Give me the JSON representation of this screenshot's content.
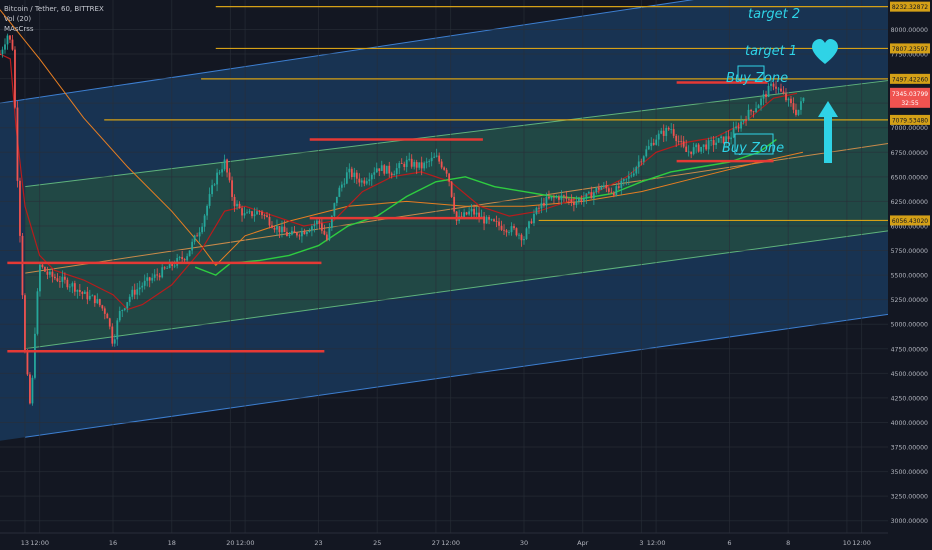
{
  "legend": {
    "symbol": "Bitcoin / Tether, 60, BITTREX",
    "volume": "Vol (20)",
    "indicator": "MAsCrss"
  },
  "colors": {
    "background": "#131722",
    "channel_fill": "#1e4a7a",
    "inner_fill": "#2a5a3a",
    "level_line": "#d4a017",
    "resistance": "#e53935",
    "annotation": "#2fd3e6",
    "ma_green": "#2ecc40",
    "ma_red": "#b71c1c",
    "ma_orange": "#e67e22",
    "up_candle": "#26a69a",
    "down_candle": "#ef5350"
  },
  "annotations": {
    "target2": "target 2",
    "target1": "target 1",
    "buy_zone_top": "Buy Zone",
    "buy_zone_mid": "Buy Zone"
  },
  "icons": [
    "heart-icon",
    "up-arrow-icon"
  ],
  "chart_data": {
    "type": "candlestick",
    "title": "Bitcoin / Tether, 60, BITTREX",
    "ylim": [
      2875,
      8300
    ],
    "y_ticks": [
      3000,
      3250,
      3500,
      3750,
      4000,
      4250,
      4500,
      4750,
      5000,
      5250,
      5500,
      5750,
      6000,
      6250,
      6500,
      6750,
      7000,
      7250,
      7500,
      7750,
      8000
    ],
    "y_tick_labels": [
      "3000.00000",
      "3250.00000",
      "3500.00000",
      "3750.00000",
      "4000.00000",
      "4250.00000",
      "4500.00000",
      "4750.00000",
      "5000.00000",
      "5250.00000",
      "5500.00000",
      "5750.00000",
      "6000.00000",
      "6250.00000",
      "6500.00000",
      "6750.00000",
      "7000.00000",
      "7250.00000",
      "7500.00000",
      "7750.00000",
      "8000.00000"
    ],
    "x_ticks": [
      {
        "label": "13",
        "day": 0
      },
      {
        "label": "12:00",
        "day": 0.5
      },
      {
        "label": "16",
        "day": 3
      },
      {
        "label": "18",
        "day": 5
      },
      {
        "label": "20",
        "day": 7
      },
      {
        "label": "12:00",
        "day": 7.5
      },
      {
        "label": "23",
        "day": 10
      },
      {
        "label": "25",
        "day": 12
      },
      {
        "label": "27",
        "day": 14
      },
      {
        "label": "12:00",
        "day": 14.5
      },
      {
        "label": "30",
        "day": 17
      },
      {
        "label": "Apr",
        "day": 19
      },
      {
        "label": "3",
        "day": 21
      },
      {
        "label": "12:00",
        "day": 21.5
      },
      {
        "label": "6",
        "day": 24
      },
      {
        "label": "8",
        "day": 26
      },
      {
        "label": "10",
        "day": 28
      },
      {
        "label": "12:00",
        "day": 28.5
      }
    ],
    "xlim": [
      -0.85,
      29.4
    ],
    "price_levels": [
      {
        "value": 8232.32872,
        "label": "8232.32872",
        "from_day": 6.5
      },
      {
        "value": 7807.23597,
        "label": "7807.23597",
        "from_day": 6.5
      },
      {
        "value": 7497.4226,
        "label": "7497.42260",
        "from_day": 6
      },
      {
        "value": 7079.5348,
        "label": "7079.53480",
        "from_day": 2.7
      },
      {
        "value": 6056.4302,
        "label": "6056.43020",
        "from_day": 17.5
      }
    ],
    "current_price": {
      "value": 7345.03799,
      "label": "7345.03799",
      "countdown": "32:55"
    },
    "channel": {
      "outer_top": [
        [
          -0.85,
          7250
        ],
        [
          29.4,
          8600
        ]
      ],
      "outer_bottom": [
        [
          0,
          3850
        ],
        [
          29.4,
          5100
        ]
      ],
      "inner_top": [
        [
          0,
          6400
        ],
        [
          29.4,
          7480
        ]
      ],
      "inner_bottom": [
        [
          0,
          4750
        ],
        [
          29.4,
          5950
        ]
      ],
      "mid_line": [
        [
          0,
          5520
        ],
        [
          29.4,
          6840
        ]
      ]
    },
    "resistance_lines": [
      {
        "from": -0.6,
        "to": 10.1,
        "value": 5625
      },
      {
        "from": -0.6,
        "to": 10.2,
        "value": 4725
      },
      {
        "from": 9.7,
        "to": 15.6,
        "value": 6880
      },
      {
        "from": 9.7,
        "to": 15.6,
        "value": 6080
      },
      {
        "from": 22.2,
        "to": 25.3,
        "value": 7460
      },
      {
        "from": 22.2,
        "to": 25.5,
        "value": 6660
      }
    ],
    "price_path": [
      [
        -0.85,
        7750
      ],
      [
        -0.6,
        7950
      ],
      [
        -0.4,
        7800
      ],
      [
        -0.3,
        6800
      ],
      [
        -0.15,
        5800
      ],
      [
        0,
        4700
      ],
      [
        0.2,
        4100
      ],
      [
        0.35,
        5000
      ],
      [
        0.5,
        5600
      ],
      [
        0.8,
        5500
      ],
      [
        1.2,
        5450
      ],
      [
        1.6,
        5400
      ],
      [
        2.0,
        5300
      ],
      [
        2.4,
        5250
      ],
      [
        2.8,
        5100
      ],
      [
        3.0,
        4800
      ],
      [
        3.2,
        5100
      ],
      [
        3.6,
        5300
      ],
      [
        4.0,
        5400
      ],
      [
        4.5,
        5500
      ],
      [
        5.0,
        5600
      ],
      [
        5.5,
        5700
      ],
      [
        6.0,
        6000
      ],
      [
        6.5,
        6500
      ],
      [
        6.8,
        6650
      ],
      [
        7.1,
        6250
      ],
      [
        7.5,
        6100
      ],
      [
        8.0,
        6150
      ],
      [
        8.5,
        6000
      ],
      [
        9.0,
        5900
      ],
      [
        9.5,
        5950
      ],
      [
        10.0,
        6050
      ],
      [
        10.3,
        5850
      ],
      [
        10.6,
        6300
      ],
      [
        11.0,
        6550
      ],
      [
        11.5,
        6450
      ],
      [
        12.0,
        6600
      ],
      [
        12.5,
        6550
      ],
      [
        13.0,
        6650
      ],
      [
        13.5,
        6600
      ],
      [
        14.0,
        6700
      ],
      [
        14.4,
        6550
      ],
      [
        14.7,
        6050
      ],
      [
        15.2,
        6150
      ],
      [
        15.7,
        6050
      ],
      [
        16.2,
        6000
      ],
      [
        16.7,
        5950
      ],
      [
        17.0,
        5880
      ],
      [
        17.3,
        6100
      ],
      [
        17.7,
        6250
      ],
      [
        18.2,
        6300
      ],
      [
        18.7,
        6250
      ],
      [
        19.2,
        6300
      ],
      [
        19.6,
        6400
      ],
      [
        20.1,
        6350
      ],
      [
        20.6,
        6500
      ],
      [
        21.0,
        6700
      ],
      [
        21.5,
        6900
      ],
      [
        22.0,
        7000
      ],
      [
        22.5,
        6750
      ],
      [
        23.0,
        6800
      ],
      [
        23.5,
        6850
      ],
      [
        24.0,
        6900
      ],
      [
        24.5,
        7100
      ],
      [
        25.0,
        7250
      ],
      [
        25.5,
        7450
      ],
      [
        25.9,
        7300
      ],
      [
        26.3,
        7150
      ],
      [
        26.6,
        7350
      ]
    ],
    "ma_green": [
      [
        5.8,
        5580
      ],
      [
        6.5,
        5500
      ],
      [
        7.0,
        5620
      ],
      [
        8.0,
        5650
      ],
      [
        9.0,
        5700
      ],
      [
        10.0,
        5800
      ],
      [
        11.0,
        6000
      ],
      [
        12.0,
        6100
      ],
      [
        13.0,
        6300
      ],
      [
        14.0,
        6450
      ],
      [
        15.0,
        6500
      ],
      [
        16.0,
        6400
      ],
      [
        17.0,
        6350
      ],
      [
        18.0,
        6300
      ],
      [
        19.0,
        6280
      ],
      [
        20.0,
        6330
      ],
      [
        21.0,
        6450
      ],
      [
        22.0,
        6550
      ],
      [
        23.0,
        6600
      ],
      [
        24.0,
        6650
      ],
      [
        25.0,
        6750
      ],
      [
        25.6,
        6880
      ]
    ],
    "ma_red": [
      [
        -0.85,
        7750
      ],
      [
        -0.5,
        7700
      ],
      [
        -0.3,
        7000
      ],
      [
        0,
        6200
      ],
      [
        0.5,
        5700
      ],
      [
        1.0,
        5550
      ],
      [
        2.0,
        5450
      ],
      [
        3.0,
        5300
      ],
      [
        3.5,
        5150
      ],
      [
        4.0,
        5200
      ],
      [
        5.0,
        5400
      ],
      [
        6.0,
        5750
      ],
      [
        6.8,
        6150
      ],
      [
        7.5,
        6200
      ],
      [
        8.5,
        6100
      ],
      [
        9.5,
        6000
      ],
      [
        10.5,
        6050
      ],
      [
        11.5,
        6350
      ],
      [
        12.5,
        6500
      ],
      [
        13.5,
        6550
      ],
      [
        14.5,
        6450
      ],
      [
        15.5,
        6200
      ],
      [
        16.5,
        6100
      ],
      [
        17.5,
        6150
      ],
      [
        18.5,
        6250
      ],
      [
        19.5,
        6350
      ],
      [
        20.5,
        6500
      ],
      [
        21.5,
        6750
      ],
      [
        22.5,
        6850
      ],
      [
        23.5,
        6900
      ],
      [
        24.5,
        7050
      ],
      [
        25.5,
        7300
      ],
      [
        26.3,
        7350
      ]
    ],
    "ma_orange": [
      [
        -0.85,
        8200
      ],
      [
        0.5,
        7700
      ],
      [
        2.0,
        7100
      ],
      [
        3.5,
        6600
      ],
      [
        5.0,
        6150
      ],
      [
        6.0,
        5800
      ],
      [
        6.5,
        5600
      ],
      [
        7.5,
        5900
      ],
      [
        9.0,
        6050
      ],
      [
        11.0,
        6200
      ],
      [
        13.0,
        6250
      ],
      [
        15.0,
        6200
      ],
      [
        17.0,
        6200
      ],
      [
        19.0,
        6250
      ],
      [
        21.0,
        6350
      ],
      [
        23.0,
        6500
      ],
      [
        25.0,
        6650
      ],
      [
        26.5,
        6750
      ]
    ]
  }
}
